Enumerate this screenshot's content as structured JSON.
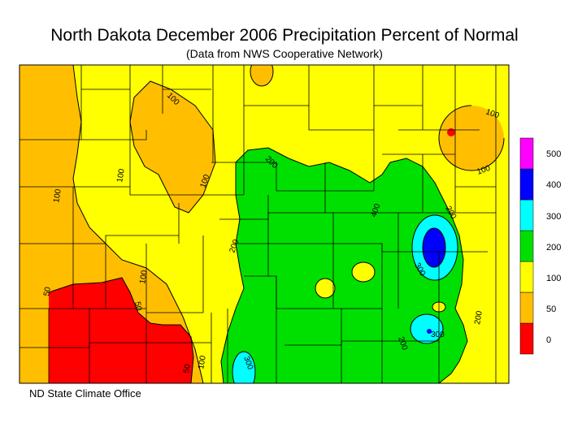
{
  "title": "North Dakota December 2006 Precipitation Percent of Normal",
  "subtitle": "(Data from NWS Cooperative Network)",
  "credit": "ND State Climate Office",
  "legend": {
    "bins": [
      {
        "label": "0",
        "color": "#ff0000"
      },
      {
        "label": "50",
        "color": "#ffbf00"
      },
      {
        "label": "100",
        "color": "#ffff00"
      },
      {
        "label": "200",
        "color": "#00e000"
      },
      {
        "label": "300",
        "color": "#00ffff"
      },
      {
        "label": "400",
        "color": "#0000ff"
      },
      {
        "label": "500",
        "color": "#ff00ff"
      }
    ]
  },
  "contour_labels": [
    "100",
    "100",
    "100",
    "100",
    "100",
    "100",
    "200",
    "200",
    "200",
    "200",
    "200",
    "300",
    "300",
    "300",
    "50",
    "50",
    "50",
    "100",
    "100",
    "400"
  ]
}
